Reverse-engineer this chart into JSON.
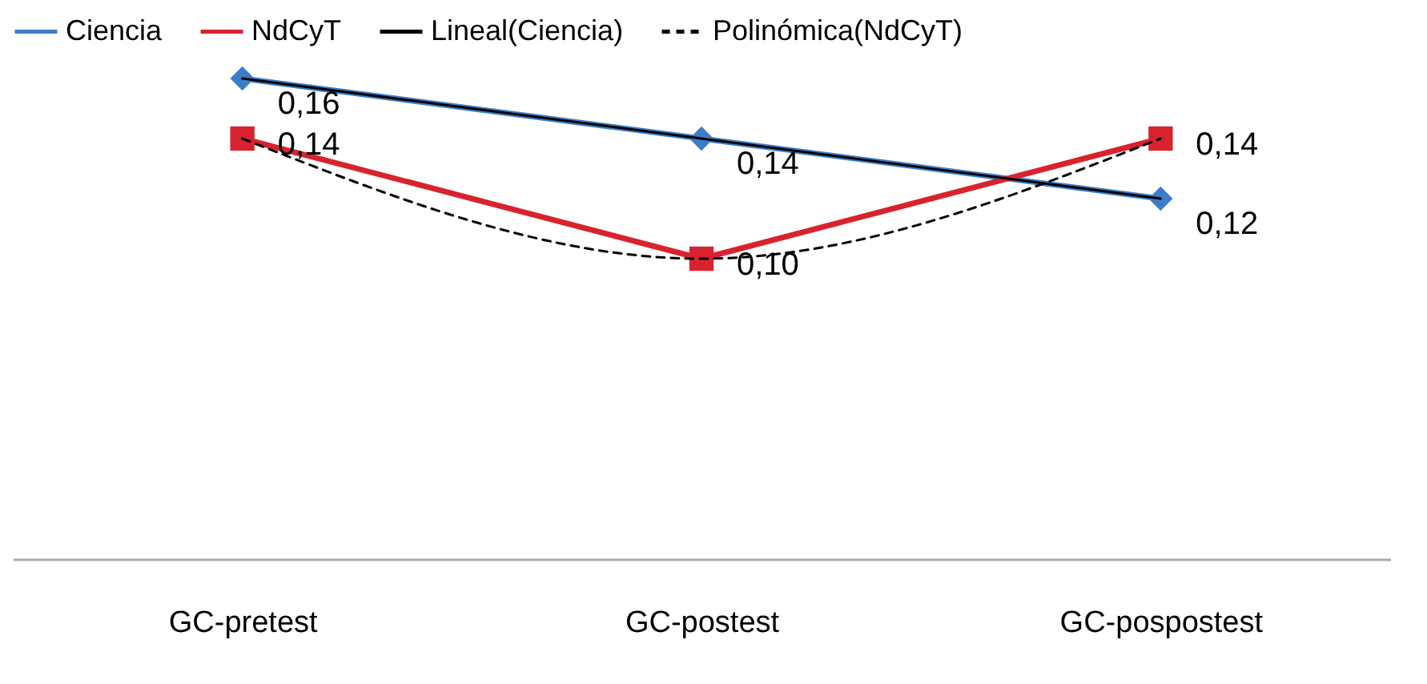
{
  "chart_data": {
    "type": "line",
    "categories": [
      "GC-pretest",
      "GC-postest",
      "GC-pospostest"
    ],
    "series": [
      {
        "name": "Ciencia",
        "color": "#3b7dc8",
        "values": [
          0.16,
          0.14,
          0.12
        ],
        "marker": "diamond",
        "value_labels": [
          "0,16",
          "0,14",
          "0,12"
        ]
      },
      {
        "name": "NdCyT",
        "color": "#d8232e",
        "values": [
          0.14,
          0.1,
          0.14
        ],
        "marker": "square",
        "value_labels": [
          "0,14",
          "0,10",
          "0,14"
        ]
      },
      {
        "name": "Lineal(Ciencia)",
        "color": "#000000",
        "values": [
          0.16,
          0.14,
          0.12
        ],
        "marker": "none"
      },
      {
        "name": "Polinómica(NdCyT)",
        "color": "#000000",
        "values": [
          0.14,
          0.1,
          0.14
        ],
        "marker": "none",
        "line_style": "dashed"
      }
    ],
    "legend": "top",
    "grid": false
  }
}
